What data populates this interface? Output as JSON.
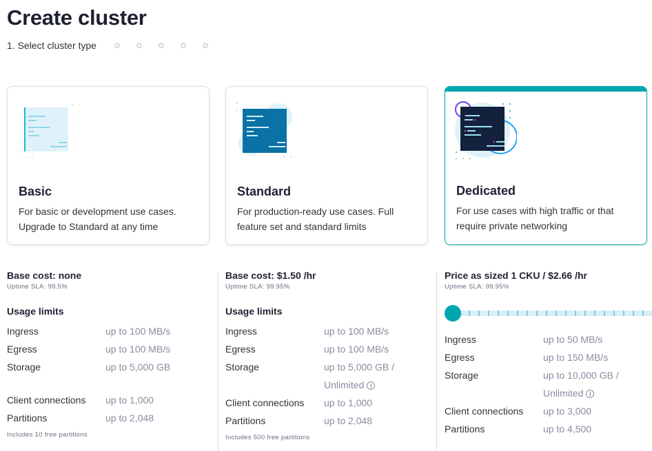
{
  "title": "Create cluster",
  "stepper": {
    "current": "1. Select cluster type",
    "remaining_steps": 5
  },
  "cards": [
    {
      "name": "Basic",
      "desc": "For basic or development use cases. Upgrade to Standard at any time",
      "selected": false
    },
    {
      "name": "Standard",
      "desc": "For production-ready use cases. Full feature set and standard limits",
      "selected": false
    },
    {
      "name": "Dedicated",
      "desc": "For use cases with high traffic or that require private networking",
      "selected": true
    }
  ],
  "details": [
    {
      "cost": "Base cost: none",
      "sla": "Uptime SLA: 99.5%",
      "usage": "Usage limits",
      "rows": [
        [
          "Ingress",
          "up to 100 MB/s"
        ],
        [
          "Egress",
          "up to 100 MB/s"
        ],
        [
          "Storage",
          "up to 5,000 GB"
        ],
        [
          "Client connections",
          "up to 1,000"
        ],
        [
          "Partitions",
          "up to 2,048"
        ]
      ],
      "foot": "Includes 10 free partitions"
    },
    {
      "cost": "Base cost: $1.50 /hr",
      "sla": "Uptime SLA: 99.95%",
      "usage": "Usage limits",
      "rows": [
        [
          "Ingress",
          "up to 100 MB/s"
        ],
        [
          "Egress",
          "up to 100 MB/s"
        ],
        [
          "Storage",
          "up to 5,000 GB /"
        ],
        [
          "",
          "Unlimited"
        ],
        [
          "Client connections",
          "up to 1,000"
        ],
        [
          "Partitions",
          "up to 2,048"
        ]
      ],
      "foot": "Includes 500 free partitions"
    },
    {
      "cost": "Price as sized 1 CKU / $2.66 /hr",
      "sla": "Uptime SLA: 99.95%",
      "slider": {
        "value_cku": 1,
        "position": "minimum"
      },
      "rows": [
        [
          "Ingress",
          "up to 50 MB/s"
        ],
        [
          "Egress",
          "up to 150 MB/s"
        ],
        [
          "Storage",
          "up to 10,000 GB /"
        ],
        [
          "",
          "Unlimited"
        ],
        [
          "Client connections",
          "up to 3,000"
        ],
        [
          "Partitions",
          "up to 4,500"
        ]
      ]
    }
  ],
  "colors": {
    "accent": "#00a6ae",
    "navy": "#14213d"
  }
}
